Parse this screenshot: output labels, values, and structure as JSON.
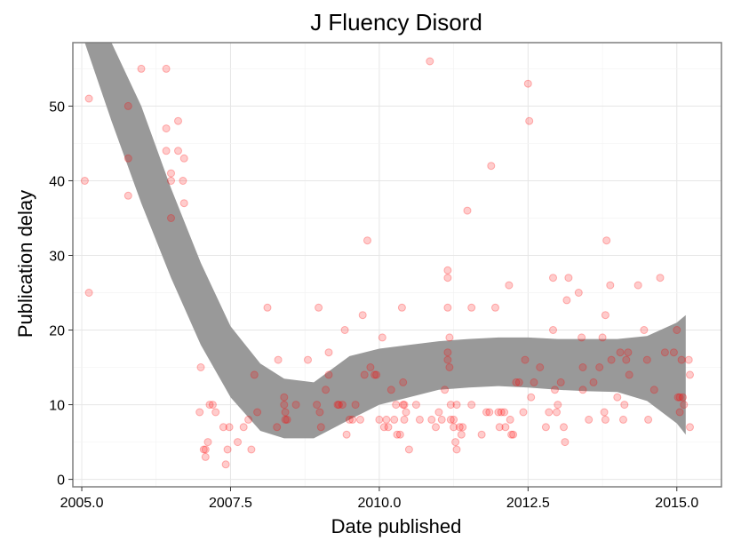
{
  "chart_data": {
    "type": "scatter",
    "title": "J Fluency Disord",
    "xlabel": "Date published",
    "ylabel": "Publication delay",
    "xlim": [
      2004.85,
      2015.75
    ],
    "ylim": [
      -1,
      58.5
    ],
    "x_ticks": [
      {
        "value": 2005.0,
        "label": "2005.0"
      },
      {
        "value": 2007.5,
        "label": "2007.5"
      },
      {
        "value": 2010.0,
        "label": "2010.0"
      },
      {
        "value": 2012.5,
        "label": "2012.5"
      },
      {
        "value": 2015.0,
        "label": "2015.0"
      }
    ],
    "y_ticks": [
      {
        "value": 0,
        "label": "0"
      },
      {
        "value": 10,
        "label": "10"
      },
      {
        "value": 20,
        "label": "20"
      },
      {
        "value": 30,
        "label": "30"
      },
      {
        "value": 40,
        "label": "40"
      },
      {
        "value": 50,
        "label": "50"
      }
    ],
    "grid": true,
    "point_color": "#ff0000",
    "point_alpha": 0.2,
    "ribbon_color": "#999999",
    "points": [
      [
        2005.05,
        40
      ],
      [
        2005.12,
        51
      ],
      [
        2005.12,
        25
      ],
      [
        2005.78,
        50
      ],
      [
        2005.78,
        43
      ],
      [
        2005.78,
        38
      ],
      [
        2006.0,
        55
      ],
      [
        2006.42,
        55
      ],
      [
        2006.42,
        47
      ],
      [
        2006.42,
        44
      ],
      [
        2006.5,
        41
      ],
      [
        2006.5,
        40
      ],
      [
        2006.5,
        35
      ],
      [
        2006.62,
        48
      ],
      [
        2006.62,
        44
      ],
      [
        2006.72,
        43
      ],
      [
        2006.7,
        40
      ],
      [
        2006.72,
        37
      ],
      [
        2007.0,
        15
      ],
      [
        2006.98,
        9
      ],
      [
        2007.05,
        4
      ],
      [
        2007.08,
        4
      ],
      [
        2007.08,
        3
      ],
      [
        2007.12,
        5
      ],
      [
        2007.15,
        10
      ],
      [
        2007.2,
        10
      ],
      [
        2007.25,
        9
      ],
      [
        2007.38,
        7
      ],
      [
        2007.42,
        2
      ],
      [
        2007.45,
        4
      ],
      [
        2007.48,
        7
      ],
      [
        2007.62,
        5
      ],
      [
        2007.72,
        7
      ],
      [
        2007.8,
        8
      ],
      [
        2007.85,
        4
      ],
      [
        2007.9,
        14
      ],
      [
        2007.95,
        9
      ],
      [
        2008.12,
        23
      ],
      [
        2008.28,
        7
      ],
      [
        2008.3,
        16
      ],
      [
        2008.4,
        11
      ],
      [
        2008.4,
        10
      ],
      [
        2008.42,
        9
      ],
      [
        2008.42,
        8
      ],
      [
        2008.45,
        8
      ],
      [
        2008.6,
        10
      ],
      [
        2008.8,
        16
      ],
      [
        2008.95,
        10
      ],
      [
        2008.98,
        23
      ],
      [
        2009.0,
        9
      ],
      [
        2009.02,
        7
      ],
      [
        2009.1,
        12
      ],
      [
        2009.15,
        17
      ],
      [
        2009.15,
        14
      ],
      [
        2009.3,
        10
      ],
      [
        2009.32,
        10
      ],
      [
        2009.38,
        10
      ],
      [
        2009.42,
        20
      ],
      [
        2009.45,
        6
      ],
      [
        2009.5,
        8
      ],
      [
        2009.55,
        8
      ],
      [
        2009.6,
        10
      ],
      [
        2009.68,
        8
      ],
      [
        2009.72,
        22
      ],
      [
        2009.75,
        14
      ],
      [
        2009.8,
        32
      ],
      [
        2009.85,
        15
      ],
      [
        2009.92,
        14
      ],
      [
        2009.95,
        14
      ],
      [
        2010.0,
        8
      ],
      [
        2010.05,
        19
      ],
      [
        2010.08,
        7
      ],
      [
        2010.12,
        8
      ],
      [
        2010.15,
        7
      ],
      [
        2010.2,
        12
      ],
      [
        2010.25,
        8
      ],
      [
        2010.28,
        10
      ],
      [
        2010.3,
        6
      ],
      [
        2010.35,
        6
      ],
      [
        2010.38,
        23
      ],
      [
        2010.4,
        13
      ],
      [
        2010.4,
        10
      ],
      [
        2010.42,
        8
      ],
      [
        2010.42,
        10
      ],
      [
        2010.45,
        9
      ],
      [
        2010.5,
        4
      ],
      [
        2010.62,
        10
      ],
      [
        2010.68,
        8
      ],
      [
        2010.85,
        56
      ],
      [
        2010.88,
        8
      ],
      [
        2010.95,
        7
      ],
      [
        2011.0,
        9
      ],
      [
        2011.05,
        8
      ],
      [
        2011.1,
        12
      ],
      [
        2011.15,
        28
      ],
      [
        2011.15,
        27
      ],
      [
        2011.15,
        23
      ],
      [
        2011.18,
        19
      ],
      [
        2011.15,
        17
      ],
      [
        2011.15,
        16
      ],
      [
        2011.18,
        15
      ],
      [
        2011.2,
        10
      ],
      [
        2011.2,
        8
      ],
      [
        2011.25,
        8
      ],
      [
        2011.25,
        7
      ],
      [
        2011.28,
        5
      ],
      [
        2011.3,
        10
      ],
      [
        2011.3,
        4
      ],
      [
        2011.35,
        7
      ],
      [
        2011.38,
        6
      ],
      [
        2011.4,
        7
      ],
      [
        2011.48,
        36
      ],
      [
        2011.55,
        23
      ],
      [
        2011.55,
        10
      ],
      [
        2011.72,
        6
      ],
      [
        2011.8,
        9
      ],
      [
        2011.85,
        9
      ],
      [
        2011.88,
        42
      ],
      [
        2011.95,
        23
      ],
      [
        2012.0,
        9
      ],
      [
        2012.02,
        7
      ],
      [
        2012.05,
        9
      ],
      [
        2012.1,
        9
      ],
      [
        2012.12,
        7
      ],
      [
        2012.18,
        26
      ],
      [
        2012.2,
        8
      ],
      [
        2012.22,
        6
      ],
      [
        2012.25,
        6
      ],
      [
        2012.3,
        13
      ],
      [
        2012.35,
        13
      ],
      [
        2012.42,
        9
      ],
      [
        2012.45,
        16
      ],
      [
        2012.5,
        53
      ],
      [
        2012.52,
        48
      ],
      [
        2012.55,
        11
      ],
      [
        2012.6,
        13
      ],
      [
        2012.7,
        15
      ],
      [
        2012.8,
        7
      ],
      [
        2012.85,
        9
      ],
      [
        2012.92,
        27
      ],
      [
        2012.92,
        20
      ],
      [
        2012.95,
        12
      ],
      [
        2012.98,
        9
      ],
      [
        2013.0,
        10
      ],
      [
        2013.05,
        13
      ],
      [
        2013.1,
        7
      ],
      [
        2013.12,
        5
      ],
      [
        2013.15,
        24
      ],
      [
        2013.18,
        27
      ],
      [
        2013.35,
        25
      ],
      [
        2013.4,
        19
      ],
      [
        2013.42,
        15
      ],
      [
        2013.42,
        12
      ],
      [
        2013.52,
        8
      ],
      [
        2013.6,
        13
      ],
      [
        2013.7,
        15
      ],
      [
        2013.75,
        19
      ],
      [
        2013.78,
        9
      ],
      [
        2013.8,
        8
      ],
      [
        2013.8,
        22
      ],
      [
        2013.82,
        32
      ],
      [
        2013.88,
        26
      ],
      [
        2013.9,
        16
      ],
      [
        2014.0,
        11
      ],
      [
        2014.05,
        17
      ],
      [
        2014.1,
        8
      ],
      [
        2014.12,
        10
      ],
      [
        2014.15,
        16
      ],
      [
        2014.18,
        17
      ],
      [
        2014.2,
        14
      ],
      [
        2014.35,
        26
      ],
      [
        2014.45,
        20
      ],
      [
        2014.5,
        16
      ],
      [
        2014.52,
        8
      ],
      [
        2014.62,
        12
      ],
      [
        2014.72,
        27
      ],
      [
        2014.8,
        17
      ],
      [
        2014.95,
        17
      ],
      [
        2015.0,
        20
      ],
      [
        2015.02,
        11
      ],
      [
        2015.05,
        11
      ],
      [
        2015.05,
        9
      ],
      [
        2015.08,
        16
      ],
      [
        2015.1,
        11
      ],
      [
        2015.12,
        10
      ],
      [
        2015.2,
        16
      ],
      [
        2015.22,
        14
      ],
      [
        2015.22,
        7
      ]
    ],
    "smooth_band": {
      "x": [
        2005.05,
        2005.5,
        2006.0,
        2006.5,
        2007.0,
        2007.5,
        2008.0,
        2008.4,
        2008.9,
        2009.5,
        2010.0,
        2010.5,
        2011.0,
        2011.5,
        2012.0,
        2012.5,
        2013.0,
        2013.5,
        2014.0,
        2014.5,
        2015.0,
        2015.15
      ],
      "lower": [
        58.5,
        48,
        37,
        27,
        18,
        11,
        6.5,
        5.5,
        5.5,
        8,
        10,
        11,
        12,
        12.3,
        12.5,
        12.3,
        12,
        11.8,
        11.7,
        10.5,
        7.5,
        6
      ],
      "upper": [
        58.5,
        58.5,
        50,
        39,
        29,
        20.5,
        15.5,
        13.5,
        13,
        16.5,
        17.5,
        18,
        18.5,
        18.8,
        19,
        19,
        18.8,
        18.8,
        18.8,
        19.2,
        21,
        22
      ]
    }
  }
}
